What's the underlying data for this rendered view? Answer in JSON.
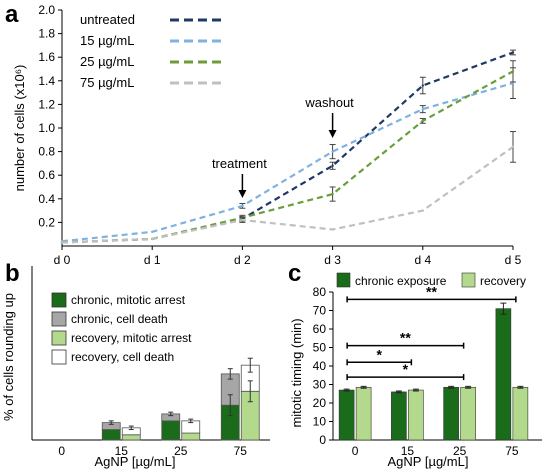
{
  "chart_data": [
    {
      "panel": "a",
      "type": "line",
      "ylabel": "number of cells (x10⁶)",
      "yticks": [
        "0.2",
        "0.4",
        "0.6",
        "0.8",
        "1.0",
        "1.2",
        "1.4",
        "1.6",
        "1.8",
        "2.0"
      ],
      "ylim": [
        0,
        2.0
      ],
      "categories": [
        "d 0",
        "d 1",
        "d 2",
        "d 3",
        "d 4",
        "d 5"
      ],
      "series": [
        {
          "name": "untreated",
          "color": "#1f3864",
          "values": [
            0.03,
            0.06,
            0.23,
            0.68,
            1.36,
            1.64
          ],
          "errors": [
            0.01,
            0.01,
            0.02,
            0.03,
            0.07,
            0.02
          ]
        },
        {
          "name": "15 µg/mL",
          "color": "#7fb2e0",
          "values": [
            0.04,
            0.12,
            0.34,
            0.8,
            1.16,
            1.38
          ],
          "errors": [
            0.01,
            0.01,
            0.02,
            0.06,
            0.03,
            0.13
          ]
        },
        {
          "name": "25 µg/mL",
          "color": "#6b9e3a",
          "values": [
            0.03,
            0.06,
            0.24,
            0.44,
            1.06,
            1.48
          ],
          "errors": [
            0.01,
            0.01,
            0.02,
            0.06,
            0.02,
            0.09
          ]
        },
        {
          "name": "75 µg/mL",
          "color": "#c0c0c0",
          "values": [
            0.03,
            0.06,
            0.22,
            0.14,
            0.3,
            0.84
          ],
          "errors": [
            0.01,
            0.01,
            0.02,
            0.01,
            0.01,
            0.13
          ]
        }
      ],
      "annotations": [
        {
          "label": "treatment",
          "category": "d 2"
        },
        {
          "label": "washout",
          "category": "d 3"
        }
      ]
    },
    {
      "panel": "b",
      "type": "bar",
      "ylabel": "% of cells rounding up",
      "xlabel": "AgNP [µg/mL]",
      "ylim": [
        0,
        100
      ],
      "categories": [
        "0",
        "15",
        "25",
        "75"
      ],
      "groups": [
        {
          "name": "chronic",
          "stack": [
            {
              "name": "chronic, mitotic arrest",
              "color": "#1a6b1a",
              "values": [
                0,
                6,
                11,
                20
              ]
            },
            {
              "name": "chronic, cell death",
              "color": "#a6a6a6",
              "values": [
                0,
                4,
                4,
                18
              ]
            }
          ],
          "errors": [
            0,
            1,
            1,
            3
          ]
        },
        {
          "name": "recovery",
          "stack": [
            {
              "name": "recovery, mitotic arrest",
              "color": "#b3d98c",
              "values": [
                0,
                3,
                4,
                28
              ]
            },
            {
              "name": "recovery, cell death",
              "color": "#ffffff",
              "values": [
                0,
                4,
                7,
                15
              ]
            }
          ],
          "errors": [
            0,
            1,
            1,
            4
          ]
        }
      ],
      "inner_errors": [
        0,
        0,
        0,
        6
      ]
    },
    {
      "panel": "c",
      "type": "bar",
      "ylabel": "mitotic timing (min)",
      "xlabel": "AgNP [µg/mL]",
      "yticks": [
        "0",
        "10",
        "20",
        "30",
        "40",
        "50",
        "60",
        "70",
        "80"
      ],
      "ylim": [
        0,
        80
      ],
      "categories": [
        "0",
        "15",
        "25",
        "75"
      ],
      "series": [
        {
          "name": "chronic exposure",
          "color": "#1a6b1a",
          "values": [
            27,
            26,
            28.5,
            71
          ],
          "errors": [
            0.5,
            0.5,
            0.5,
            3
          ]
        },
        {
          "name": "recovery",
          "color": "#b3d98c",
          "values": [
            28.5,
            27,
            28.5,
            28.5
          ],
          "errors": [
            0.5,
            0.5,
            0.5,
            0.5
          ]
        }
      ],
      "significance": [
        {
          "label": "**",
          "from": "0",
          "to": "75",
          "y": 76
        },
        {
          "label": "**",
          "from": "0",
          "to": "25",
          "y": 51
        },
        {
          "label": "*",
          "from": "0",
          "to": "15",
          "y": 42
        },
        {
          "label": "*",
          "from": "0",
          "to": "25",
          "y": 34
        }
      ]
    }
  ]
}
